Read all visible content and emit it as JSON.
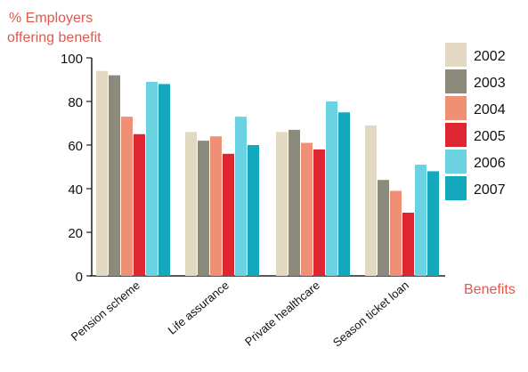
{
  "chart_data": {
    "type": "bar",
    "ylabel_lines": [
      "% Employers",
      "offering benefit"
    ],
    "xlabel": "Benefits",
    "ylim": [
      0,
      100
    ],
    "yticks": [
      0,
      20,
      40,
      60,
      80,
      100
    ],
    "categories": [
      "Pension scheme",
      "Life assurance",
      "Private healthcare",
      "Season ticket loan"
    ],
    "series": [
      {
        "name": "2002",
        "color": "#e3d9c2",
        "values": [
          94,
          66,
          66,
          69
        ]
      },
      {
        "name": "2003",
        "color": "#8c8a7c",
        "values": [
          92,
          62,
          67,
          44
        ]
      },
      {
        "name": "2004",
        "color": "#ef8f76",
        "values": [
          73,
          64,
          61,
          39
        ]
      },
      {
        "name": "2005",
        "color": "#dd2630",
        "values": [
          65,
          56,
          58,
          29
        ]
      },
      {
        "name": "2006",
        "color": "#6ad2e0",
        "values": [
          89,
          73,
          80,
          51
        ]
      },
      {
        "name": "2007",
        "color": "#14a8bd",
        "values": [
          88,
          60,
          75,
          48
        ]
      }
    ],
    "legend_position": "right",
    "grid": false,
    "label_color": "#e2574c"
  }
}
